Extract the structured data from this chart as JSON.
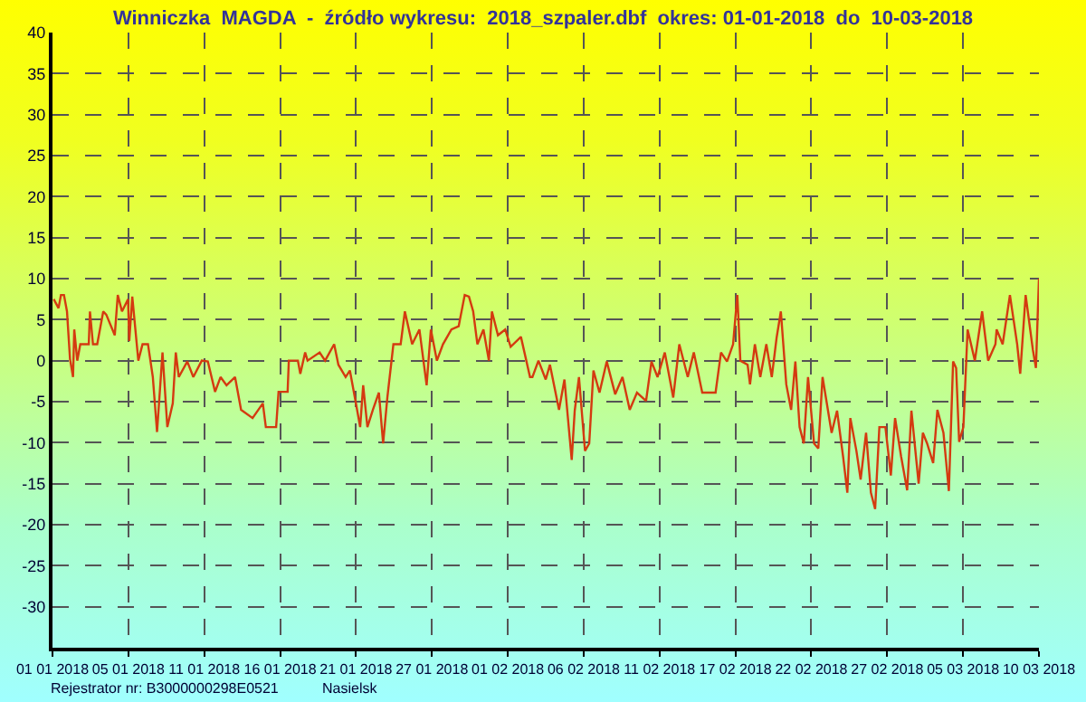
{
  "chart_data": {
    "type": "line",
    "title": "Winniczka  MAGDA  -  źródło wykresu:  2018_szpaler.dbf  okres: 01-01-2018  do  10-03-2018",
    "annotations": [
      "Rejestrator nr: B3000000298E0521",
      "Nasielsk"
    ],
    "xlim": [
      "2018-01-01",
      "2018-03-10"
    ],
    "xticks": [
      {
        "value": "2018-01-01",
        "label": "01 01 2018"
      },
      {
        "value": "2018-01-06T05:32",
        "label": "05 01 2018"
      },
      {
        "value": "2018-01-11T11:05",
        "label": "11 01 2018"
      },
      {
        "value": "2018-01-16T16:37",
        "label": "16 01 2018"
      },
      {
        "value": "2018-01-21T22:09",
        "label": "21 01 2018"
      },
      {
        "value": "2018-01-27T03:42",
        "label": "27 01 2018"
      },
      {
        "value": "2018-02-01T09:14",
        "label": "01 02 2018"
      },
      {
        "value": "2018-02-06T14:46",
        "label": "06 02 2018"
      },
      {
        "value": "2018-02-11T20:18",
        "label": "11 02 2018"
      },
      {
        "value": "2018-02-17T01:51",
        "label": "17 02 2018"
      },
      {
        "value": "2018-02-22T07:23",
        "label": "22 02 2018"
      },
      {
        "value": "2018-02-27T12:55",
        "label": "27 02 2018"
      },
      {
        "value": "2018-03-04T18:28",
        "label": "05 03 2018"
      },
      {
        "value": "2018-03-10",
        "label": "10 03 2018"
      }
    ],
    "ylim": [
      -35,
      40
    ],
    "yticks": [
      -30,
      -25,
      -20,
      -15,
      -10,
      -5,
      0,
      5,
      10,
      15,
      20,
      25,
      30,
      35,
      40
    ],
    "grid": true,
    "marker": "none",
    "line_style": "solid",
    "series": [
      {
        "color": "#d43a10",
        "x": [
          "2018-01-01T02:00",
          "2018-01-01T10:00",
          "2018-01-01T14:00",
          "2018-01-01T19:00",
          "2018-01-02T00:00",
          "2018-01-02T05:00",
          "2018-01-02T10:00",
          "2018-01-02T12:00",
          "2018-01-02T17:00",
          "2018-01-02T22:00",
          "2018-01-03T12:00",
          "2018-01-03T14:00",
          "2018-01-03T19:00",
          "2018-01-04T02:00",
          "2018-01-04T12:00",
          "2018-01-04T17:00",
          "2018-01-05T07:00",
          "2018-01-05T12:00",
          "2018-01-05T19:00",
          "2018-01-06T05:00",
          "2018-01-06T07:00",
          "2018-01-06T12:00",
          "2018-01-06T22:00",
          "2018-01-07T05:00",
          "2018-01-07T14:00",
          "2018-01-07T22:00",
          "2018-01-08T05:00",
          "2018-01-08T14:00",
          "2018-01-08T22:00",
          "2018-01-09T07:00",
          "2018-01-09T12:00",
          "2018-01-09T17:00",
          "2018-01-10T07:00",
          "2018-01-10T17:00",
          "2018-01-11T07:00",
          "2018-01-11T17:00",
          "2018-01-12T05:00",
          "2018-01-12T14:00",
          "2018-01-13T00:00",
          "2018-01-13T14:00",
          "2018-01-14T00:00",
          "2018-01-14T19:00",
          "2018-01-15T12:00",
          "2018-01-15T17:00",
          "2018-01-16T10:00",
          "2018-01-16T14:00",
          "2018-01-17T05:00",
          "2018-01-17T07:00",
          "2018-01-17T22:00",
          "2018-01-18T02:00",
          "2018-01-18T10:00",
          "2018-01-18T14:00",
          "2018-01-19T10:00",
          "2018-01-19T19:00",
          "2018-01-20T10:00",
          "2018-01-20T17:00",
          "2018-01-21T05:00",
          "2018-01-21T12:00",
          "2018-01-21T22:00",
          "2018-01-22T05:00",
          "2018-01-22T10:00",
          "2018-01-22T17:00",
          "2018-01-23T02:00",
          "2018-01-23T12:00",
          "2018-01-23T19:00",
          "2018-01-24T02:00",
          "2018-01-24T12:00",
          "2018-01-25T00:00",
          "2018-01-25T07:00",
          "2018-01-25T19:00",
          "2018-01-26T07:00",
          "2018-01-26T19:00",
          "2018-01-27T02:00",
          "2018-01-27T12:00",
          "2018-01-27T22:00",
          "2018-01-28T12:00",
          "2018-01-29T00:00",
          "2018-01-29T10:00",
          "2018-01-29T17:00",
          "2018-01-30T00:00",
          "2018-01-30T07:00",
          "2018-01-30T17:00",
          "2018-01-31T02:00",
          "2018-01-31T07:00",
          "2018-01-31T17:00",
          "2018-02-01T05:00",
          "2018-02-01T14:00",
          "2018-02-02T07:00",
          "2018-02-02T22:00",
          "2018-02-03T02:00",
          "2018-02-03T12:00",
          "2018-02-04T00:00",
          "2018-02-04T07:00",
          "2018-02-04T22:00",
          "2018-02-05T07:00",
          "2018-02-05T19:00",
          "2018-02-06T00:00",
          "2018-02-06T07:00",
          "2018-02-06T17:00",
          "2018-02-07T00:00",
          "2018-02-07T07:00",
          "2018-02-07T17:00",
          "2018-02-08T05:00",
          "2018-02-08T19:00",
          "2018-02-09T07:00",
          "2018-02-09T19:00",
          "2018-02-10T07:00",
          "2018-02-10T22:00",
          "2018-02-11T07:00",
          "2018-02-11T17:00",
          "2018-02-12T05:00",
          "2018-02-12T19:00",
          "2018-02-13T05:00",
          "2018-02-13T19:00",
          "2018-02-14T05:00",
          "2018-02-14T19:00",
          "2018-02-15T17:00",
          "2018-02-16T02:00",
          "2018-02-16T12:00",
          "2018-02-16T22:00",
          "2018-02-17T05:00",
          "2018-02-17T10:00",
          "2018-02-17T22:00",
          "2018-02-18T02:00",
          "2018-02-18T10:00",
          "2018-02-18T19:00",
          "2018-02-19T05:00",
          "2018-02-19T14:00",
          "2018-02-19T22:00",
          "2018-02-20T05:00",
          "2018-02-20T14:00",
          "2018-02-20T22:00",
          "2018-02-21T05:00",
          "2018-02-21T12:00",
          "2018-02-21T19:00",
          "2018-02-22T02:00",
          "2018-02-22T12:00",
          "2018-02-22T19:00",
          "2018-02-23T02:00",
          "2018-02-23T17:00",
          "2018-02-24T02:00",
          "2018-02-24T12:00",
          "2018-02-24T19:00",
          "2018-02-25T00:00",
          "2018-02-25T10:00",
          "2018-02-25T17:00",
          "2018-02-26T02:00",
          "2018-02-26T10:00",
          "2018-02-26T17:00",
          "2018-02-27T00:00",
          "2018-02-27T10:00",
          "2018-02-27T19:00",
          "2018-02-28T02:00",
          "2018-02-28T12:00",
          "2018-02-28T22:00",
          "2018-03-01T05:00",
          "2018-03-01T17:00",
          "2018-03-02T00:00",
          "2018-03-02T07:00",
          "2018-03-02T17:00",
          "2018-03-03T00:00",
          "2018-03-03T10:00",
          "2018-03-03T19:00",
          "2018-03-04T02:00",
          "2018-03-04T07:00",
          "2018-03-04T12:00",
          "2018-03-04T19:00",
          "2018-03-05T02:00",
          "2018-03-05T14:00",
          "2018-03-06T02:00",
          "2018-03-06T12:00",
          "2018-03-07T00:00",
          "2018-03-07T02:00",
          "2018-03-07T12:00",
          "2018-03-08T00:00",
          "2018-03-08T12:00",
          "2018-03-08T17:00",
          "2018-03-09T02:00",
          "2018-03-09T14:00",
          "2018-03-09T19:00",
          "2018-03-10T00:00"
        ],
        "values": [
          7.5,
          6.4,
          8,
          8,
          6,
          0.2,
          -2,
          3.8,
          0,
          2,
          2,
          6,
          2,
          2,
          6,
          5.6,
          3.1,
          8,
          6,
          7.5,
          2.4,
          7.8,
          0,
          2,
          2,
          -2,
          -8.7,
          1,
          -8.1,
          -5.2,
          1,
          -2,
          -0.1,
          -2,
          0,
          -0.1,
          -3.8,
          -2,
          -3,
          -2,
          -6,
          -7,
          -5.2,
          -8.1,
          -8.1,
          -3.8,
          -3.8,
          0,
          0,
          -1.6,
          1,
          0,
          1,
          0,
          2,
          -0.5,
          -2,
          -1.2,
          -5.2,
          -8.1,
          -3,
          -8.1,
          -6,
          -3.9,
          -10.1,
          -4.5,
          2,
          2,
          6,
          2,
          3.8,
          -3,
          3.8,
          0,
          2,
          3.8,
          4.2,
          8,
          7.8,
          6,
          2,
          3.8,
          0,
          6,
          3.1,
          3.8,
          1.7,
          2.9,
          -2,
          -2,
          0,
          -2.3,
          -0.5,
          -6,
          -2.3,
          -12.1,
          -6.1,
          -2,
          -11,
          -10.1,
          -1.2,
          -3.9,
          -0.1,
          -4.1,
          -2,
          -6,
          -3.9,
          -4.9,
          -0.1,
          -2,
          1,
          -4.5,
          2,
          -2,
          1,
          -3.9,
          -3.9,
          1,
          -0.1,
          2,
          8,
          0,
          -0.5,
          -2.9,
          2,
          -2,
          2,
          -2,
          2.8,
          6,
          -2.9,
          -6,
          -0.1,
          -8.1,
          -10.1,
          -2,
          -10.1,
          -10.7,
          -2,
          -8.8,
          -6.1,
          -11.7,
          -16.1,
          -7,
          -11,
          -14.5,
          -8.8,
          -16.1,
          -18.1,
          -8.1,
          -8.1,
          -14,
          -7,
          -11.7,
          -15.8,
          -6.1,
          -15,
          -8.8,
          -10.1,
          -12.5,
          -6,
          -8.8,
          -15.9,
          -0.1,
          -0.9,
          -9.9,
          -8.1,
          3.8,
          0,
          6,
          0,
          2,
          3.8,
          2,
          8,
          2,
          -1.6,
          8,
          1.3,
          -0.9,
          10
        ]
      }
    ]
  }
}
